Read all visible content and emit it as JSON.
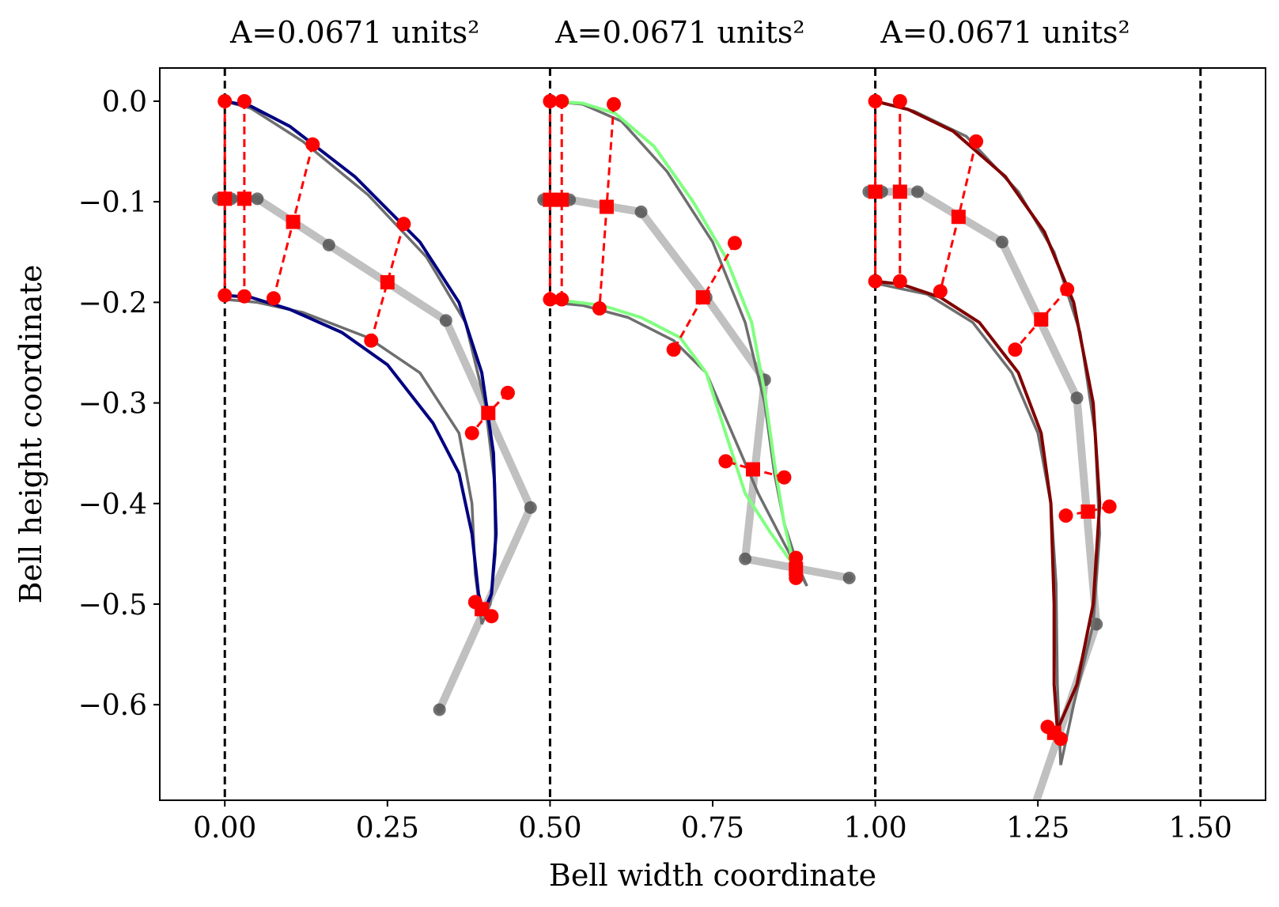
{
  "chart_data": {
    "type": "line",
    "panel_titles": [
      "A=0.0671 units²",
      "A=0.0671 units²",
      "A=0.0671 units²"
    ],
    "xlabel": "Bell width coordinate",
    "ylabel": "Bell height coordinate",
    "xlim": [
      -0.1,
      1.6
    ],
    "ylim": [
      -0.695,
      0.033
    ],
    "xticks": [
      0.0,
      0.25,
      0.5,
      0.75,
      1.0,
      1.25,
      1.5
    ],
    "xtick_labels": [
      "0.00",
      "0.25",
      "0.50",
      "0.75",
      "1.00",
      "1.25",
      "1.50"
    ],
    "yticks": [
      0.0,
      -0.1,
      -0.2,
      -0.3,
      -0.4,
      -0.5,
      -0.6
    ],
    "ytick_labels": [
      "0.0",
      "−0.1",
      "−0.2",
      "−0.3",
      "−0.4",
      "−0.5",
      "−0.6"
    ],
    "vlines": [
      0.0,
      0.5,
      1.0,
      1.5
    ],
    "panels": [
      {
        "color": "#000080",
        "skeleton": [
          [
            -0.01,
            -0.097
          ],
          [
            0.01,
            -0.097
          ],
          [
            0.05,
            -0.097
          ],
          [
            0.16,
            -0.143
          ],
          [
            0.34,
            -0.218
          ],
          [
            0.47,
            -0.404
          ],
          [
            0.33,
            -0.605
          ]
        ],
        "rungs": [
          [
            [
              0.0,
              0.0
            ],
            [
              0.0,
              -0.097
            ],
            [
              0.0,
              -0.193
            ]
          ],
          [
            [
              0.03,
              0.0
            ],
            [
              0.03,
              -0.097
            ],
            [
              0.03,
              -0.194
            ]
          ],
          [
            [
              0.135,
              -0.043
            ],
            [
              0.105,
              -0.12
            ],
            [
              0.075,
              -0.196
            ]
          ],
          [
            [
              0.275,
              -0.122
            ],
            [
              0.25,
              -0.18
            ],
            [
              0.225,
              -0.238
            ]
          ],
          [
            [
              0.435,
              -0.29
            ],
            [
              0.405,
              -0.31
            ],
            [
              0.38,
              -0.33
            ]
          ],
          [
            [
              0.41,
              -0.512
            ],
            [
              0.395,
              -0.505
            ],
            [
              0.385,
              -0.498
            ]
          ]
        ],
        "outer": [
          [
            0.0,
            0.0
          ],
          [
            0.04,
            -0.005
          ],
          [
            0.1,
            -0.025
          ],
          [
            0.2,
            -0.075
          ],
          [
            0.3,
            -0.14
          ],
          [
            0.36,
            -0.2
          ],
          [
            0.395,
            -0.27
          ],
          [
            0.413,
            -0.35
          ],
          [
            0.417,
            -0.43
          ],
          [
            0.41,
            -0.49
          ],
          [
            0.398,
            -0.508
          ]
        ],
        "inner": [
          [
            0.398,
            -0.508
          ],
          [
            0.39,
            -0.49
          ],
          [
            0.38,
            -0.43
          ],
          [
            0.36,
            -0.37
          ],
          [
            0.32,
            -0.32
          ],
          [
            0.25,
            -0.262
          ],
          [
            0.18,
            -0.23
          ],
          [
            0.1,
            -0.207
          ],
          [
            0.04,
            -0.195
          ],
          [
            0.0,
            -0.193
          ]
        ],
        "target_outer": [
          [
            0.0,
            0.0
          ],
          [
            0.04,
            -0.007
          ],
          [
            0.12,
            -0.04
          ],
          [
            0.22,
            -0.093
          ],
          [
            0.31,
            -0.155
          ],
          [
            0.37,
            -0.22
          ],
          [
            0.4,
            -0.3
          ],
          [
            0.415,
            -0.38
          ],
          [
            0.416,
            -0.45
          ],
          [
            0.408,
            -0.5
          ],
          [
            0.395,
            -0.52
          ]
        ],
        "target_inner": [
          [
            0.395,
            -0.52
          ],
          [
            0.385,
            -0.47
          ],
          [
            0.38,
            -0.4
          ],
          [
            0.36,
            -0.33
          ],
          [
            0.3,
            -0.27
          ],
          [
            0.22,
            -0.235
          ],
          [
            0.12,
            -0.21
          ],
          [
            0.05,
            -0.2
          ],
          [
            0.0,
            -0.197
          ]
        ]
      },
      {
        "color": "#80ff80",
        "skeleton": [
          [
            0.49,
            -0.098
          ],
          [
            0.51,
            -0.098
          ],
          [
            0.53,
            -0.098
          ],
          [
            0.64,
            -0.11
          ],
          [
            0.74,
            -0.195
          ],
          [
            0.83,
            -0.277
          ],
          [
            0.8,
            -0.455
          ],
          [
            0.96,
            -0.474
          ]
        ],
        "rungs": [
          [
            [
              0.5,
              0.0
            ],
            [
              0.5,
              -0.098
            ],
            [
              0.5,
              -0.197
            ]
          ],
          [
            [
              0.518,
              0.0
            ],
            [
              0.518,
              -0.098
            ],
            [
              0.518,
              -0.197
            ]
          ],
          [
            [
              0.598,
              -0.003
            ],
            [
              0.587,
              -0.105
            ],
            [
              0.576,
              -0.206
            ]
          ],
          [
            [
              0.784,
              -0.141
            ],
            [
              0.735,
              -0.195
            ],
            [
              0.69,
              -0.247
            ]
          ],
          [
            [
              0.86,
              -0.374
            ],
            [
              0.812,
              -0.366
            ],
            [
              0.77,
              -0.358
            ]
          ],
          [
            [
              0.878,
              -0.474
            ],
            [
              0.878,
              -0.465
            ],
            [
              0.878,
              -0.454
            ]
          ]
        ],
        "outer": [
          [
            0.5,
            0.0
          ],
          [
            0.55,
            -0.002
          ],
          [
            0.6,
            -0.012
          ],
          [
            0.66,
            -0.045
          ],
          [
            0.72,
            -0.1
          ],
          [
            0.77,
            -0.155
          ],
          [
            0.81,
            -0.22
          ],
          [
            0.83,
            -0.29
          ],
          [
            0.845,
            -0.36
          ],
          [
            0.86,
            -0.42
          ],
          [
            0.875,
            -0.462
          ]
        ],
        "inner": [
          [
            0.875,
            -0.462
          ],
          [
            0.84,
            -0.43
          ],
          [
            0.8,
            -0.39
          ],
          [
            0.77,
            -0.33
          ],
          [
            0.74,
            -0.27
          ],
          [
            0.7,
            -0.235
          ],
          [
            0.64,
            -0.215
          ],
          [
            0.58,
            -0.203
          ],
          [
            0.53,
            -0.199
          ],
          [
            0.5,
            -0.198
          ]
        ],
        "target_outer": [
          [
            0.5,
            0.0
          ],
          [
            0.55,
            -0.003
          ],
          [
            0.61,
            -0.02
          ],
          [
            0.68,
            -0.07
          ],
          [
            0.75,
            -0.14
          ],
          [
            0.8,
            -0.22
          ],
          [
            0.83,
            -0.3
          ],
          [
            0.845,
            -0.37
          ],
          [
            0.86,
            -0.42
          ],
          [
            0.88,
            -0.46
          ],
          [
            0.895,
            -0.482
          ]
        ],
        "target_inner": [
          [
            0.895,
            -0.482
          ],
          [
            0.86,
            -0.44
          ],
          [
            0.82,
            -0.39
          ],
          [
            0.78,
            -0.33
          ],
          [
            0.74,
            -0.27
          ],
          [
            0.69,
            -0.238
          ],
          [
            0.62,
            -0.215
          ],
          [
            0.55,
            -0.203
          ],
          [
            0.5,
            -0.2
          ]
        ]
      },
      {
        "color": "#800000",
        "skeleton": [
          [
            0.99,
            -0.09
          ],
          [
            1.01,
            -0.09
          ],
          [
            1.065,
            -0.09
          ],
          [
            1.195,
            -0.14
          ],
          [
            1.31,
            -0.295
          ],
          [
            1.34,
            -0.52
          ],
          [
            1.24,
            -0.71
          ]
        ],
        "rungs": [
          [
            [
              1.0,
              0.0
            ],
            [
              1.0,
              -0.09
            ],
            [
              1.0,
              -0.179
            ]
          ],
          [
            [
              1.038,
              0.0
            ],
            [
              1.038,
              -0.09
            ],
            [
              1.038,
              -0.179
            ]
          ],
          [
            [
              1.155,
              -0.04
            ],
            [
              1.128,
              -0.115
            ],
            [
              1.1,
              -0.189
            ]
          ],
          [
            [
              1.295,
              -0.187
            ],
            [
              1.255,
              -0.217
            ],
            [
              1.215,
              -0.247
            ]
          ],
          [
            [
              1.36,
              -0.403
            ],
            [
              1.327,
              -0.408
            ],
            [
              1.293,
              -0.412
            ]
          ],
          [
            [
              1.285,
              -0.634
            ],
            [
              1.275,
              -0.628
            ],
            [
              1.265,
              -0.622
            ]
          ]
        ],
        "outer": [
          [
            1.0,
            0.0
          ],
          [
            1.05,
            -0.008
          ],
          [
            1.12,
            -0.03
          ],
          [
            1.2,
            -0.075
          ],
          [
            1.26,
            -0.13
          ],
          [
            1.305,
            -0.2
          ],
          [
            1.335,
            -0.3
          ],
          [
            1.345,
            -0.4
          ],
          [
            1.335,
            -0.5
          ],
          [
            1.31,
            -0.58
          ],
          [
            1.28,
            -0.625
          ]
        ],
        "inner": [
          [
            1.28,
            -0.625
          ],
          [
            1.275,
            -0.58
          ],
          [
            1.275,
            -0.5
          ],
          [
            1.27,
            -0.4
          ],
          [
            1.255,
            -0.33
          ],
          [
            1.22,
            -0.27
          ],
          [
            1.16,
            -0.22
          ],
          [
            1.1,
            -0.195
          ],
          [
            1.04,
            -0.182
          ],
          [
            1.0,
            -0.179
          ]
        ],
        "target_outer": [
          [
            1.0,
            0.0
          ],
          [
            1.06,
            -0.01
          ],
          [
            1.14,
            -0.035
          ],
          [
            1.22,
            -0.09
          ],
          [
            1.275,
            -0.15
          ],
          [
            1.315,
            -0.23
          ],
          [
            1.338,
            -0.33
          ],
          [
            1.345,
            -0.43
          ],
          [
            1.335,
            -0.52
          ],
          [
            1.305,
            -0.6
          ],
          [
            1.285,
            -0.66
          ]
        ],
        "target_inner": [
          [
            1.285,
            -0.66
          ],
          [
            1.28,
            -0.58
          ],
          [
            1.278,
            -0.48
          ],
          [
            1.27,
            -0.4
          ],
          [
            1.25,
            -0.33
          ],
          [
            1.21,
            -0.27
          ],
          [
            1.15,
            -0.22
          ],
          [
            1.08,
            -0.192
          ],
          [
            1.0,
            -0.181
          ]
        ]
      }
    ]
  }
}
